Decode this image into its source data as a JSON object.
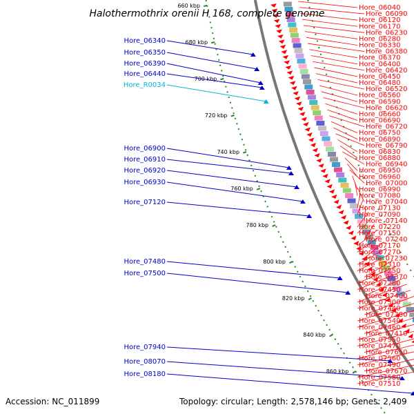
{
  "title": "Halothermothrix orenii H 168, complete genome",
  "footer": {
    "accession": "Accession: NC_011899",
    "topology": "Topology: circular; Length: 2,578,146 bp; Genes: 2,409"
  },
  "colors": {
    "plus_strand": "#ff0000",
    "minus_strand": "#0000cc",
    "rna": "#00b5d8",
    "ruler_dots": "#228822",
    "backbone": "#777777"
  },
  "ruler": {
    "ticks": [
      "660 kbp",
      "680 kbp",
      "700 kbp",
      "720 kbp",
      "740 kbp",
      "760 kbp",
      "780 kbp",
      "800 kbp",
      "820 kbp",
      "840 kbp",
      "860 kbp"
    ]
  },
  "genes_left": [
    {
      "label": "Hore_06340",
      "type": "minus"
    },
    {
      "label": "Hore_06350",
      "type": "minus"
    },
    {
      "label": "Hore_06390",
      "type": "minus"
    },
    {
      "label": "Hore_06440",
      "type": "minus"
    },
    {
      "label": "Hore_R0034",
      "type": "rna"
    },
    {
      "label": "Hore_06900",
      "type": "minus"
    },
    {
      "label": "Hore_06910",
      "type": "minus"
    },
    {
      "label": "Hore_06920",
      "type": "minus"
    },
    {
      "label": "Hore_06930",
      "type": "minus"
    },
    {
      "label": "Hore_07120",
      "type": "minus"
    },
    {
      "label": "Hore_07480",
      "type": "minus"
    },
    {
      "label": "Hore_07500",
      "type": "minus"
    },
    {
      "label": "Hore_07940",
      "type": "minus"
    },
    {
      "label": "Hore_08070",
      "type": "minus"
    },
    {
      "label": "Hore_08180",
      "type": "minus"
    }
  ],
  "genes_right": [
    {
      "label": "Hore_06040"
    },
    {
      "label": "Hore_06090"
    },
    {
      "label": "Hore_06120"
    },
    {
      "label": "Hore_06170"
    },
    {
      "label": "Hore_06230"
    },
    {
      "label": "Hore_06280"
    },
    {
      "label": "Hore_06330"
    },
    {
      "label": "Hore_06380"
    },
    {
      "label": "Hore_06370"
    },
    {
      "label": "Hore_06400"
    },
    {
      "label": "Hore_06420"
    },
    {
      "label": "Hore_06450"
    },
    {
      "label": "Hore_06480"
    },
    {
      "label": "Hore_06520"
    },
    {
      "label": "Hore_06560"
    },
    {
      "label": "Hore_06590"
    },
    {
      "label": "Hore_06620"
    },
    {
      "label": "Hore_06660"
    },
    {
      "label": "Hore_06690"
    },
    {
      "label": "Hore_06720"
    },
    {
      "label": "Hore_06750"
    },
    {
      "label": "Hore_06890"
    },
    {
      "label": "Hore_06790"
    },
    {
      "label": "Hore_06830"
    },
    {
      "label": "Hore_06880"
    },
    {
      "label": "Hore_06940"
    },
    {
      "label": "Hore_06950"
    },
    {
      "label": "Hore_06960"
    },
    {
      "label": "Hore_07000"
    },
    {
      "label": "Hore_06990"
    },
    {
      "label": "Hore_07080"
    },
    {
      "label": "Hore_07040"
    },
    {
      "label": "Hore_07130"
    },
    {
      "label": "Hore_07090"
    },
    {
      "label": "Hore_07140"
    },
    {
      "label": "Hore_07220"
    },
    {
      "label": "Hore_07150"
    },
    {
      "label": "Hore_07240"
    },
    {
      "label": "Hore_07170"
    },
    {
      "label": "Hore_07270"
    },
    {
      "label": "Hore_07230"
    },
    {
      "label": "Hore_07310"
    },
    {
      "label": "Hore_07250"
    },
    {
      "label": "Hore_07370"
    },
    {
      "label": "Hore_07280"
    },
    {
      "label": "Hore_07450"
    },
    {
      "label": "Hore_07400"
    },
    {
      "label": "Hore_07300"
    },
    {
      "label": "Hore_07440"
    },
    {
      "label": "Hore_07380"
    },
    {
      "label": "Hore_07540"
    },
    {
      "label": "Hore_07460"
    },
    {
      "label": "Hore_07410"
    },
    {
      "label": "Hore_07550"
    },
    {
      "label": "Hore_07470"
    },
    {
      "label": "Hore_07650"
    },
    {
      "label": "Hore_07560"
    },
    {
      "label": "Hore_07490"
    },
    {
      "label": "Hore_07670"
    },
    {
      "label": "Hore_07580"
    },
    {
      "label": "Hore_07510"
    }
  ]
}
